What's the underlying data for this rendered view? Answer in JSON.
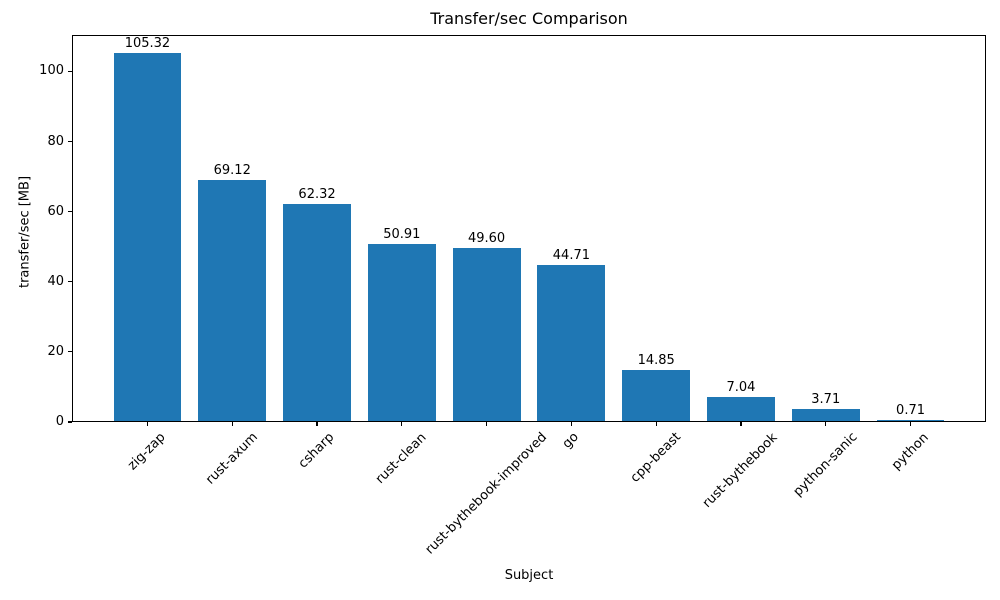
{
  "chart_data": {
    "type": "bar",
    "title": "Transfer/sec Comparison",
    "xlabel": "Subject",
    "ylabel": "transfer/sec [MB]",
    "categories": [
      "zig-zap",
      "rust-axum",
      "csharp",
      "rust-clean",
      "rust-bythebook-improved",
      "go",
      "cpp-beast",
      "rust-bythebook",
      "python-sanic",
      "python"
    ],
    "values": [
      105.32,
      69.12,
      62.32,
      50.91,
      49.6,
      44.71,
      14.85,
      7.04,
      3.71,
      0.71
    ],
    "value_labels": [
      "105.32",
      "69.12",
      "62.32",
      "50.91",
      "49.60",
      "44.71",
      "14.85",
      "7.04",
      "3.71",
      "0.71"
    ],
    "yticks": [
      0,
      20,
      40,
      60,
      80,
      100
    ],
    "ylim": [
      0,
      110.4
    ],
    "bar_color": "#1f77b4",
    "background_color": "#ffffff",
    "text_color": "#000000",
    "grid": false,
    "legend": null,
    "x_tick_rotation_deg": 45
  }
}
